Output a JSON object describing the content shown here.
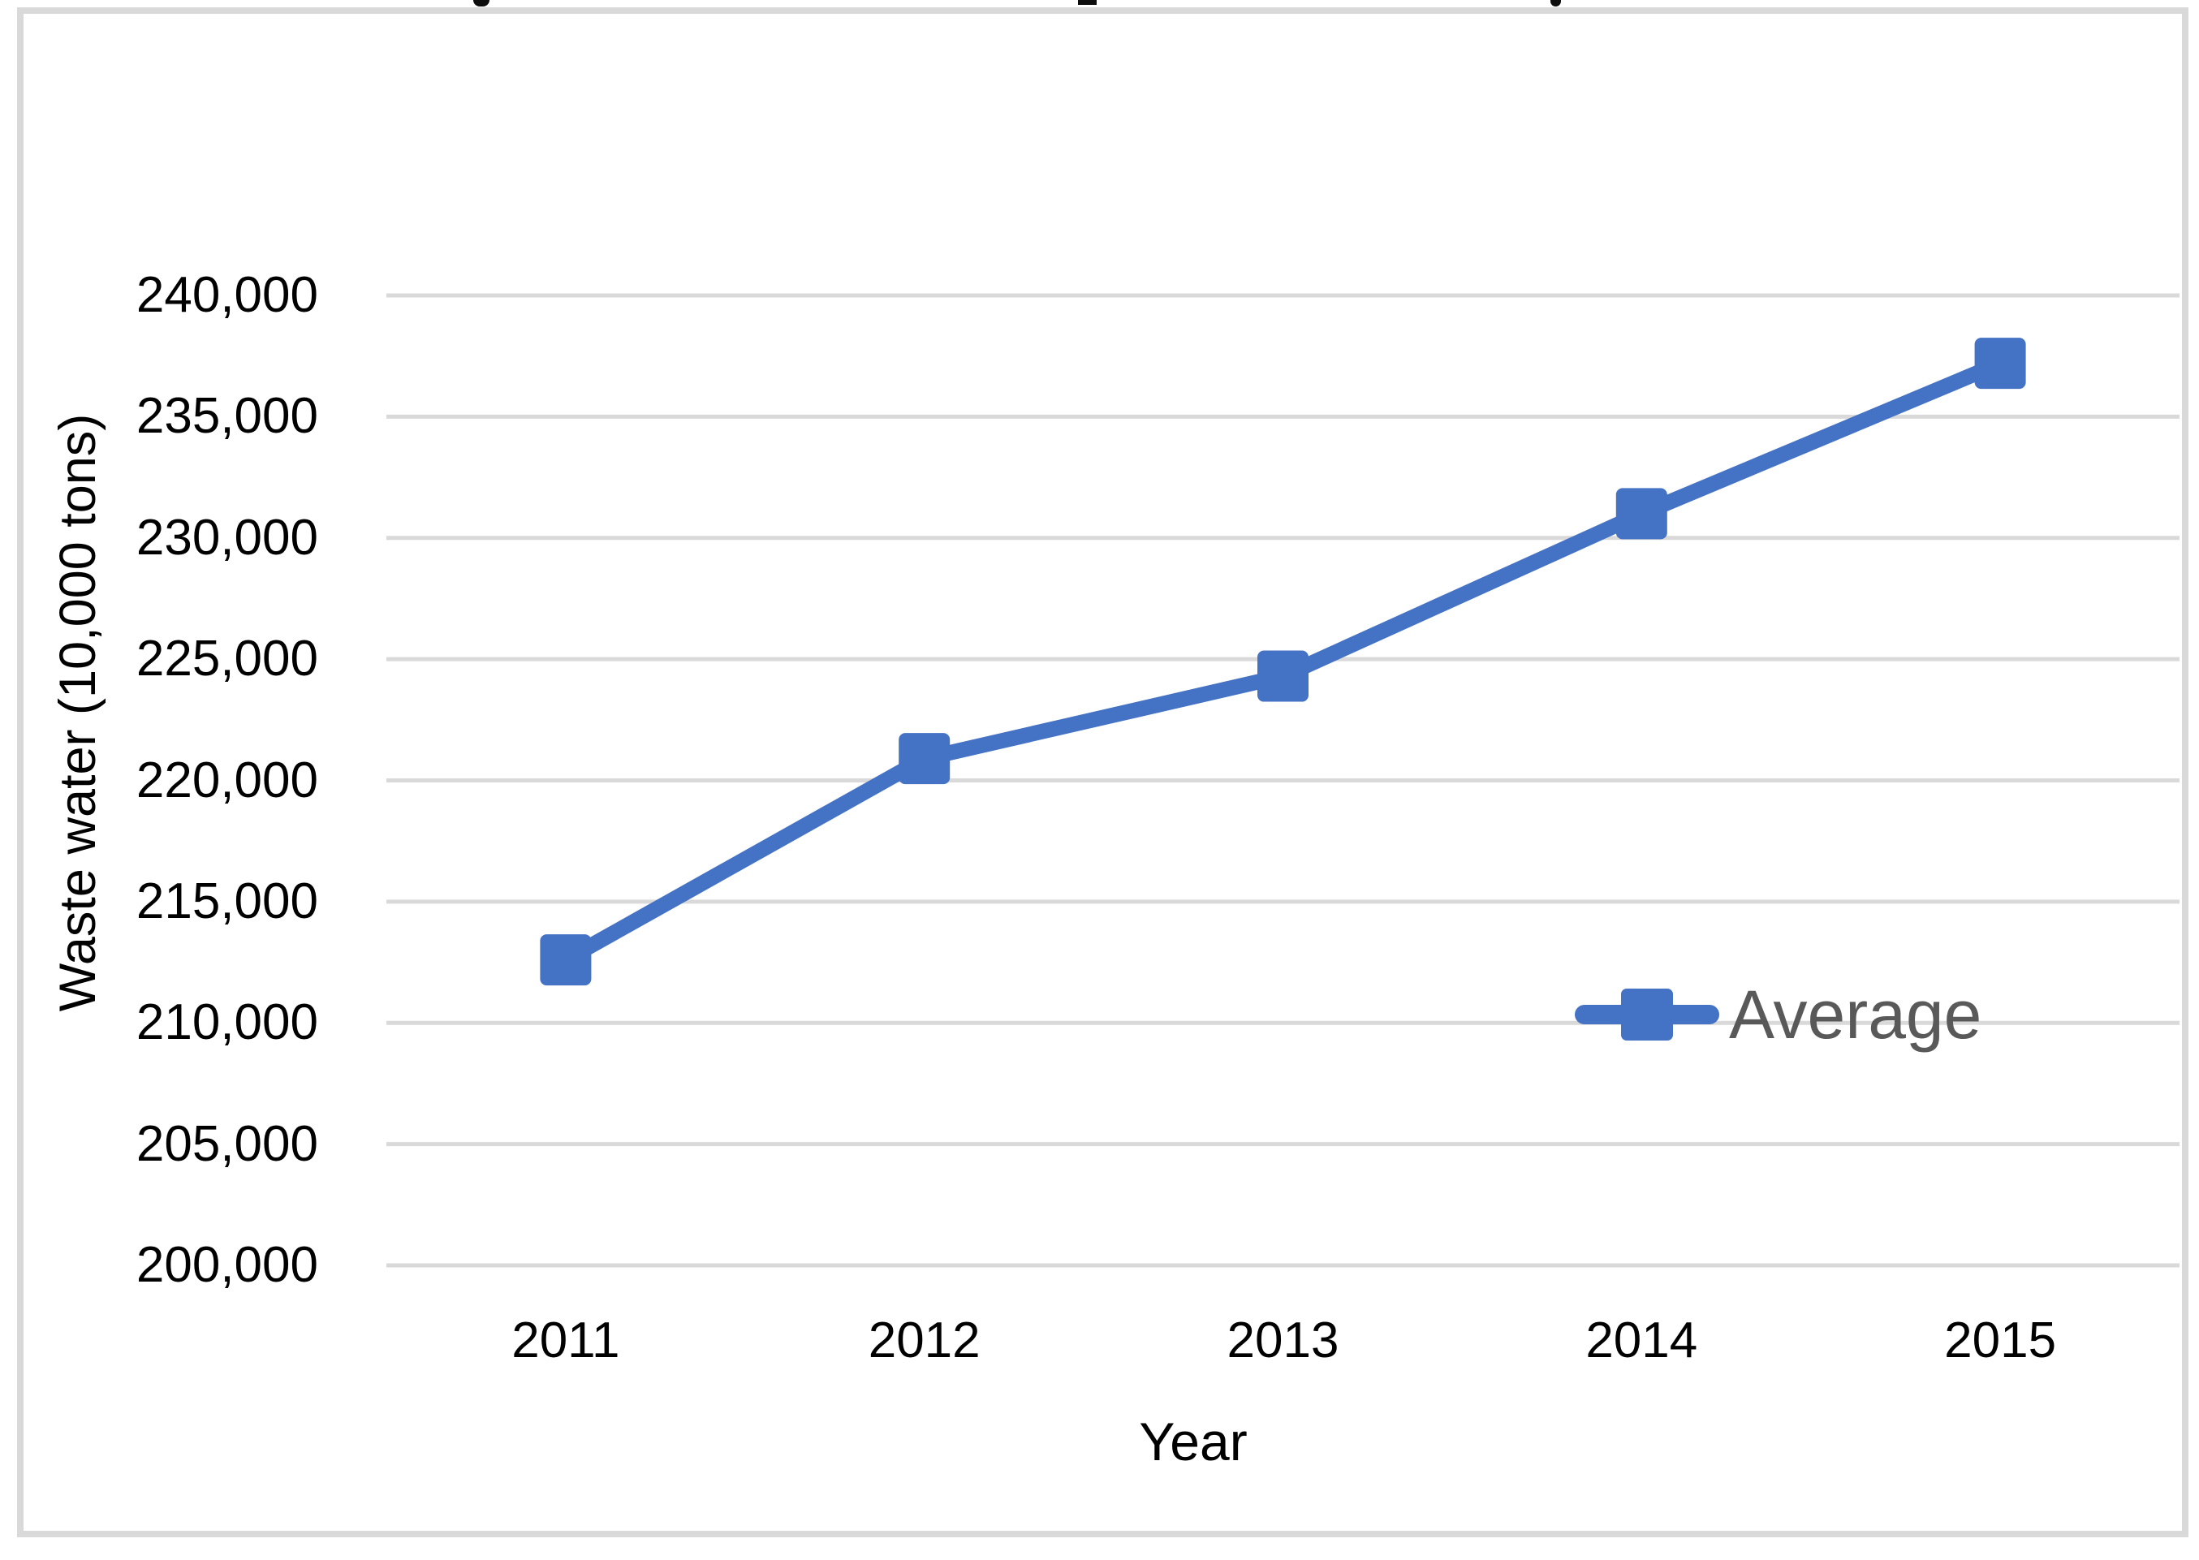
{
  "chart_data": {
    "type": "line",
    "title_cropped_at_top": true,
    "categories": [
      "2011",
      "2012",
      "2013",
      "2014",
      "2015"
    ],
    "series": [
      {
        "name": "Average",
        "values": [
          212600,
          220900,
          224300,
          231000,
          237200
        ],
        "color": "#4472c4",
        "marker": "square"
      }
    ],
    "xlabel": "Year",
    "ylabel": "Waste water (10,000 tons)",
    "ylim": [
      200000,
      240000
    ],
    "ytick_step": 5000,
    "ytick_labels": [
      "200,000",
      "205,000",
      "210,000",
      "215,000",
      "220,000",
      "225,000",
      "230,000",
      "235,000",
      "240,000"
    ],
    "grid": true,
    "gridline_color": "#d9d9d9",
    "frame_color": "#d9d9d9",
    "axis_text_color": "#000000",
    "legend_text_color": "#595959",
    "legend_position": "inside-right"
  }
}
